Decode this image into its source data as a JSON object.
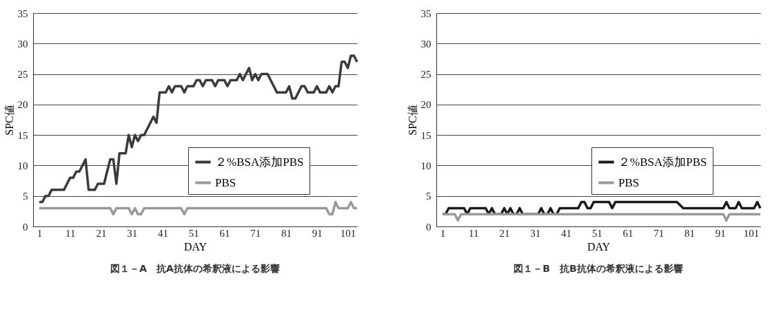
{
  "chart_data": [
    {
      "type": "line",
      "title": "図１－A　抗A抗体の希釈液による影響",
      "xlabel": "DAY",
      "ylabel": "SPC値",
      "xlim": [
        -1,
        104
      ],
      "xticks": [
        1,
        11,
        21,
        31,
        41,
        51,
        61,
        71,
        81,
        91,
        101
      ],
      "ylim": [
        0,
        35
      ],
      "yticks": [
        0,
        5,
        10,
        15,
        20,
        25,
        30,
        35
      ],
      "grid": "y",
      "legend": "right",
      "line_style": "solid",
      "marker": "none",
      "series": [
        {
          "name": "２%BSA添加PBS",
          "color": "#3a3a3a",
          "x": [
            1,
            2,
            3,
            4,
            5,
            6,
            7,
            8,
            9,
            10,
            11,
            12,
            13,
            14,
            15,
            16,
            17,
            18,
            19,
            20,
            21,
            22,
            23,
            24,
            25,
            26,
            27,
            28,
            29,
            30,
            31,
            32,
            33,
            34,
            35,
            36,
            37,
            38,
            39,
            40,
            41,
            42,
            43,
            44,
            45,
            46,
            47,
            48,
            49,
            50,
            51,
            52,
            53,
            54,
            55,
            56,
            57,
            58,
            59,
            60,
            61,
            62,
            63,
            64,
            65,
            66,
            67,
            68,
            69,
            70,
            71,
            72,
            73,
            74,
            75,
            76,
            77,
            78,
            79,
            80,
            81,
            82,
            83,
            84,
            85,
            86,
            87,
            88,
            89,
            90,
            91,
            92,
            93,
            94,
            95,
            96,
            97,
            98,
            99,
            100,
            101,
            102,
            103,
            104
          ],
          "values": [
            4,
            4,
            5,
            5,
            6,
            6,
            6,
            6,
            6,
            7,
            8,
            8,
            9,
            9,
            10,
            11,
            6,
            6,
            6,
            7,
            7,
            7,
            9,
            11,
            11,
            7,
            12,
            12,
            12,
            15,
            13,
            15,
            14,
            15,
            15,
            16,
            17,
            18,
            17,
            22,
            22,
            22,
            23,
            22,
            23,
            23,
            23,
            22,
            23,
            23,
            23,
            24,
            24,
            23,
            24,
            24,
            24,
            23,
            24,
            24,
            24,
            23,
            24,
            24,
            24,
            25,
            24,
            25,
            26,
            24,
            25,
            24,
            25,
            25,
            25,
            24,
            23,
            22,
            22,
            22,
            22,
            23,
            21,
            21,
            22,
            23,
            23,
            22,
            22,
            22,
            23,
            22,
            22,
            22,
            23,
            22,
            23,
            23,
            27,
            27,
            26,
            28,
            28,
            27
          ]
        },
        {
          "name": "PBS",
          "color": "#999999",
          "x": [
            1,
            24,
            25,
            26,
            30,
            31,
            32,
            33,
            34,
            35,
            47,
            48,
            49,
            94,
            95,
            96,
            97,
            98,
            101,
            102,
            103,
            104
          ],
          "values": [
            3,
            3,
            2,
            3,
            3,
            2,
            3,
            2,
            2,
            3,
            3,
            2,
            3,
            3,
            2,
            2,
            4,
            3,
            3,
            4,
            3,
            3
          ]
        }
      ]
    },
    {
      "type": "line",
      "title": "図１－B　抗B抗体の希釈液による影響",
      "xlabel": "DAY",
      "ylabel": "SPC値",
      "xlim": [
        -1,
        104
      ],
      "xticks": [
        1,
        11,
        21,
        31,
        41,
        51,
        61,
        71,
        81,
        91,
        101
      ],
      "ylim": [
        0,
        35
      ],
      "yticks": [
        0,
        5,
        10,
        15,
        20,
        25,
        30,
        35
      ],
      "grid": "y",
      "legend": "right",
      "line_style": "solid",
      "marker": "none",
      "series": [
        {
          "name": "２%BSA添加PBS",
          "color": "#1a1a1a",
          "x": [
            1,
            2,
            3,
            8,
            9,
            10,
            15,
            16,
            17,
            18,
            20,
            21,
            22,
            23,
            24,
            25,
            26,
            27,
            32,
            33,
            34,
            35,
            36,
            37,
            38,
            39,
            45,
            46,
            47,
            48,
            49,
            50,
            55,
            56,
            57,
            77,
            79,
            92,
            93,
            94,
            96,
            97,
            98,
            102,
            103,
            104
          ],
          "values": [
            2,
            2,
            3,
            3,
            2,
            3,
            3,
            2,
            3,
            2,
            2,
            3,
            2,
            3,
            2,
            2,
            3,
            2,
            2,
            3,
            2,
            2,
            3,
            2,
            2,
            3,
            3,
            4,
            4,
            3,
            3,
            4,
            4,
            3,
            4,
            4,
            3,
            3,
            4,
            3,
            3,
            4,
            3,
            3,
            4,
            3
          ]
        },
        {
          "name": "PBS",
          "color": "#999999",
          "x": [
            1,
            5,
            6,
            7,
            92,
            93,
            94,
            104
          ],
          "values": [
            2,
            2,
            1,
            2,
            2,
            1,
            2,
            2
          ]
        }
      ]
    }
  ]
}
